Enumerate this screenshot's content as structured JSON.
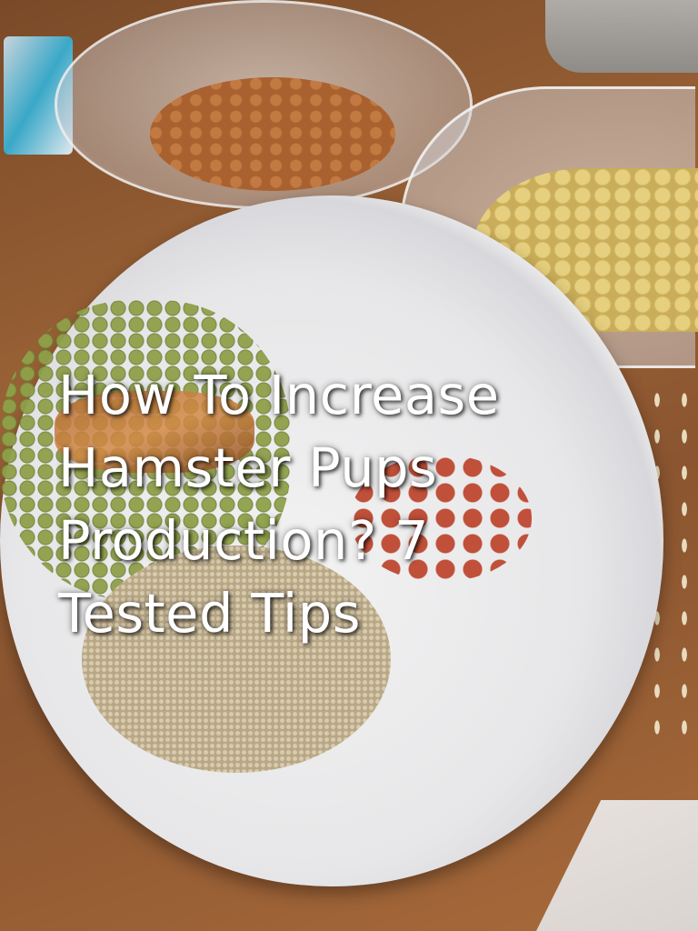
{
  "image": {
    "title": "How To Increase Hamster Pups Production? 7 Tested Tips"
  }
}
